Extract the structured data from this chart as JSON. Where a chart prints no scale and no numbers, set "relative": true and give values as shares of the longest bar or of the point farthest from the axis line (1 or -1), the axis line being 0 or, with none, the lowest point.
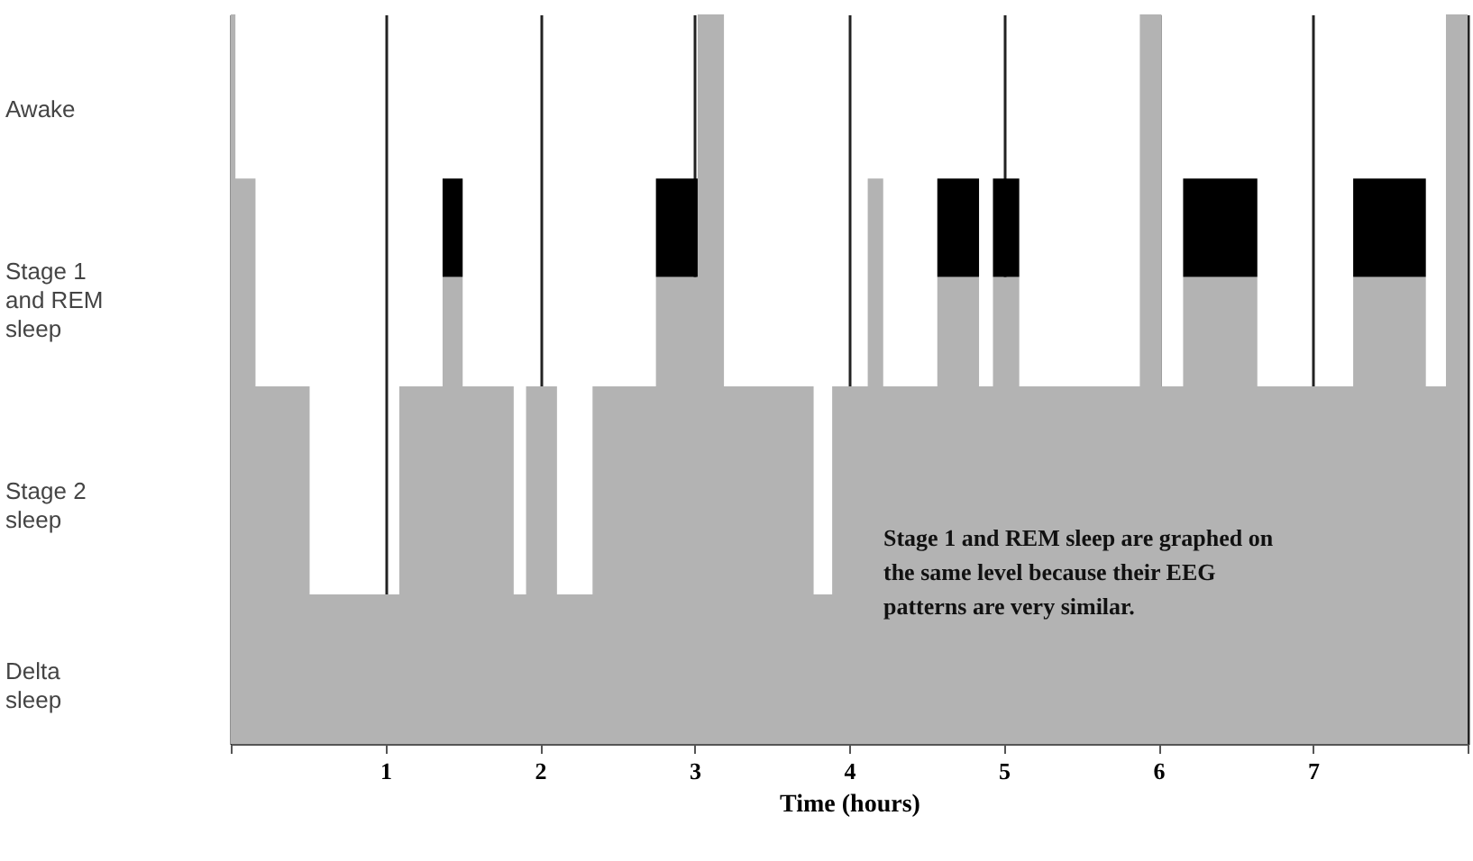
{
  "chart_data": {
    "type": "area",
    "xlabel": "Time (hours)",
    "relative": true,
    "stacked": true,
    "xlim": [
      0,
      8
    ],
    "xticks": [
      {
        "value": 0,
        "label": null
      },
      1,
      2,
      3,
      4,
      5,
      6,
      7,
      {
        "value": 8,
        "label": null
      }
    ],
    "grid": "x",
    "x": [
      0,
      0.03,
      0.16,
      0.51,
      1.09,
      1.37,
      1.5,
      1.83,
      1.91,
      2.11,
      2.34,
      2.75,
      3.02,
      3.19,
      3.77,
      3.89,
      4.12,
      4.22,
      4.57,
      4.84,
      4.93,
      5.1,
      5.88,
      6.02,
      6.16,
      6.64,
      7.26,
      7.73,
      7.86,
      8
    ],
    "series": [
      {
        "color": "#b3b3b3",
        "values": [
          1,
          0.775,
          0.49,
          0.205,
          0.49,
          0.64,
          0.49,
          0.205,
          0.49,
          0.205,
          0.49,
          0.64,
          1,
          0.49,
          0.205,
          0.49,
          0.775,
          0.49,
          0.64,
          0.49,
          0.64,
          0.49,
          1,
          0.49,
          0.64,
          0.49,
          0.64,
          0.49,
          1,
          1
        ]
      },
      {
        "color": "#000000",
        "values": [
          0,
          0,
          0,
          0,
          0,
          0.135,
          0,
          0,
          0,
          0,
          0,
          0.135,
          0,
          0,
          0,
          0,
          0,
          0,
          0.135,
          0,
          0.135,
          0,
          0,
          0,
          0.135,
          0,
          0.135,
          0,
          0,
          0
        ]
      }
    ],
    "annotations": [
      "Awake",
      "Stage 1\nand REM\nsleep",
      "Stage 2\nsleep",
      "Delta\nsleep",
      "Stage 1 and REM sleep are graphed on\nthe same level because their EEG\npatterns are very similar."
    ]
  }
}
